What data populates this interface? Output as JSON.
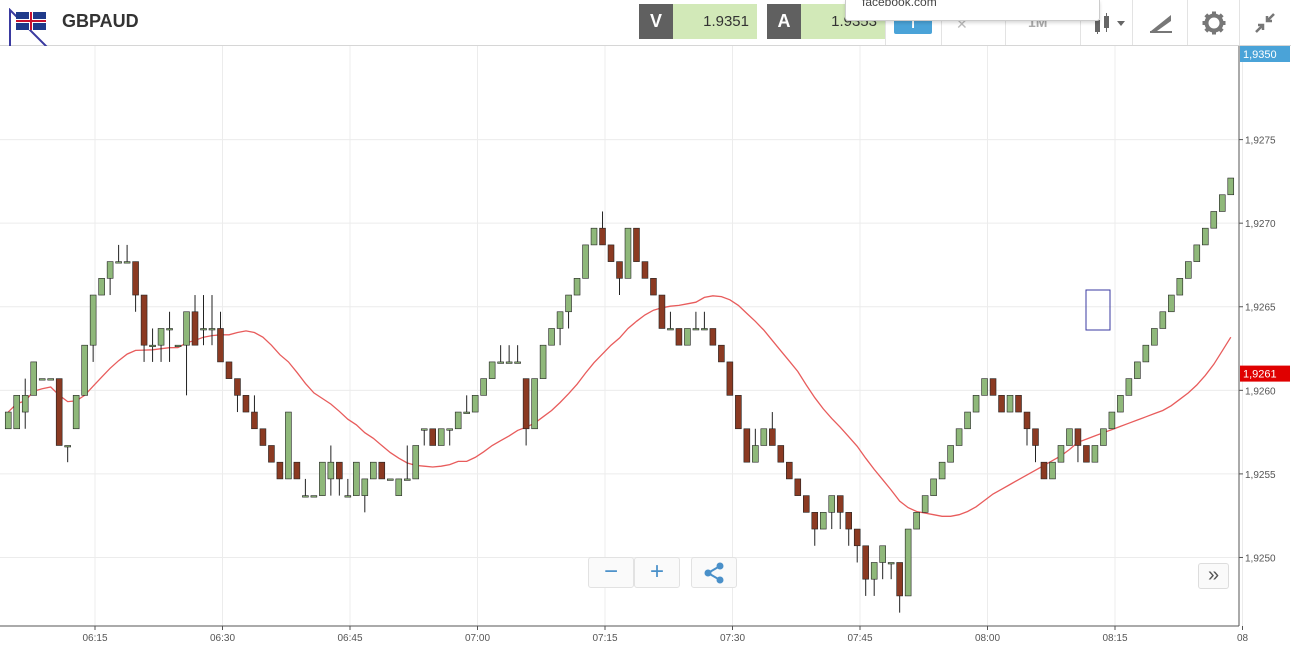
{
  "instrument": {
    "symbol": "GBPAUD",
    "flag_icon": "gb-au-flag-icon"
  },
  "quotes": {
    "sell_label": "V",
    "sell_value": "1.9351",
    "buy_label": "A",
    "buy_value": "1.9353"
  },
  "tooltip": {
    "text": "facebook.com"
  },
  "toolbar": {
    "indicator_label": "I",
    "timeframe_label": "1M",
    "tools_icons": [
      "chart-type-icon",
      "draw-tool-icon",
      "gear-icon",
      "collapse-icon"
    ]
  },
  "chart_data": {
    "type": "candlestick",
    "x_ticks": [
      "06:15",
      "06:30",
      "06:45",
      "07:00",
      "07:15",
      "07:30",
      "07:45",
      "08:00",
      "08:15",
      "08"
    ],
    "y_ticks": [
      "1,9275",
      "1,9270",
      "1,9265",
      "1,9260",
      "1,9255",
      "1,9250"
    ],
    "ylim": [
      1.92459,
      1.92806
    ],
    "current_price_label": "1,9350",
    "ma_price_label": "1,9261",
    "colors": {
      "up": "#8fb87a",
      "down": "#8b3a22",
      "ma": "#e85c5c",
      "current_badge": "#4aa3d8",
      "ma_badge": "#e00000",
      "grid": "#ececec"
    },
    "candles": [
      [
        1.92577,
        1.92587,
        1.92587,
        1.92577
      ],
      [
        1.92577,
        1.92597,
        1.92597,
        1.92577
      ],
      [
        1.92587,
        1.92597,
        1.92607,
        1.92577
      ],
      [
        1.92597,
        1.92617,
        1.92617,
        1.92597
      ],
      [
        1.92607,
        1.92607,
        1.92607,
        1.92607
      ],
      [
        1.92607,
        1.92607,
        1.92607,
        1.92607
      ],
      [
        1.92607,
        1.92567,
        1.92607,
        1.92567
      ],
      [
        1.92567,
        1.92567,
        1.92567,
        1.92557
      ],
      [
        1.92577,
        1.92597,
        1.92597,
        1.92577
      ],
      [
        1.92597,
        1.92627,
        1.92627,
        1.92597
      ],
      [
        1.92627,
        1.92657,
        1.92657,
        1.92617
      ],
      [
        1.92657,
        1.92667,
        1.92667,
        1.92657
      ],
      [
        1.92667,
        1.92677,
        1.92677,
        1.92657
      ],
      [
        1.92677,
        1.92677,
        1.92687,
        1.92677
      ],
      [
        1.92677,
        1.92677,
        1.92687,
        1.92677
      ],
      [
        1.92677,
        1.92657,
        1.92677,
        1.92647
      ],
      [
        1.92657,
        1.92627,
        1.92657,
        1.92617
      ],
      [
        1.92627,
        1.92627,
        1.92637,
        1.92617
      ],
      [
        1.92627,
        1.92637,
        1.92637,
        1.92617
      ],
      [
        1.92637,
        1.92637,
        1.92647,
        1.92617
      ],
      [
        1.92627,
        1.92627,
        1.92627,
        1.92627
      ],
      [
        1.92627,
        1.92647,
        1.92647,
        1.92597
      ],
      [
        1.92647,
        1.92627,
        1.92657,
        1.92627
      ],
      [
        1.92637,
        1.92637,
        1.92657,
        1.92627
      ],
      [
        1.92637,
        1.92637,
        1.92657,
        1.92627
      ],
      [
        1.92637,
        1.92617,
        1.92647,
        1.92617
      ],
      [
        1.92617,
        1.92607,
        1.92617,
        1.92607
      ],
      [
        1.92607,
        1.92597,
        1.92607,
        1.92587
      ],
      [
        1.92597,
        1.92587,
        1.92597,
        1.92587
      ],
      [
        1.92587,
        1.92577,
        1.92597,
        1.92577
      ],
      [
        1.92577,
        1.92567,
        1.92577,
        1.92567
      ],
      [
        1.92567,
        1.92557,
        1.92567,
        1.92557
      ],
      [
        1.92557,
        1.92547,
        1.92557,
        1.92547
      ],
      [
        1.92547,
        1.92587,
        1.92587,
        1.92547
      ],
      [
        1.92557,
        1.92547,
        1.92557,
        1.92547
      ],
      [
        1.92537,
        1.92537,
        1.92547,
        1.92537
      ],
      [
        1.92537,
        1.92537,
        1.92537,
        1.92537
      ],
      [
        1.92537,
        1.92557,
        1.92557,
        1.92537
      ],
      [
        1.92547,
        1.92557,
        1.92567,
        1.92537
      ],
      [
        1.92557,
        1.92547,
        1.92557,
        1.92537
      ],
      [
        1.92537,
        1.92537,
        1.92547,
        1.92537
      ],
      [
        1.92537,
        1.92557,
        1.92557,
        1.92537
      ],
      [
        1.92537,
        1.92547,
        1.92547,
        1.92527
      ],
      [
        1.92547,
        1.92557,
        1.92557,
        1.92547
      ],
      [
        1.92557,
        1.92547,
        1.92557,
        1.92547
      ],
      [
        1.92547,
        1.92547,
        1.92547,
        1.92547
      ],
      [
        1.92537,
        1.92547,
        1.92547,
        1.92537
      ],
      [
        1.92547,
        1.92547,
        1.92567,
        1.92547
      ],
      [
        1.92547,
        1.92567,
        1.92567,
        1.92547
      ],
      [
        1.92577,
        1.92577,
        1.92577,
        1.92567
      ],
      [
        1.92577,
        1.92567,
        1.92577,
        1.92567
      ],
      [
        1.92567,
        1.92577,
        1.92577,
        1.92567
      ],
      [
        1.92577,
        1.92577,
        1.92577,
        1.92567
      ],
      [
        1.92577,
        1.92587,
        1.92587,
        1.92577
      ],
      [
        1.92587,
        1.92587,
        1.92597,
        1.92587
      ],
      [
        1.92587,
        1.92597,
        1.92597,
        1.92587
      ],
      [
        1.92597,
        1.92607,
        1.92607,
        1.92597
      ],
      [
        1.92607,
        1.92617,
        1.92617,
        1.92607
      ],
      [
        1.92617,
        1.92617,
        1.92627,
        1.92617
      ],
      [
        1.92617,
        1.92617,
        1.92627,
        1.92617
      ],
      [
        1.92617,
        1.92617,
        1.92627,
        1.92617
      ],
      [
        1.92607,
        1.92577,
        1.92607,
        1.92567
      ],
      [
        1.92577,
        1.92607,
        1.92607,
        1.92577
      ],
      [
        1.92607,
        1.92627,
        1.92627,
        1.92607
      ],
      [
        1.92627,
        1.92637,
        1.92637,
        1.92627
      ],
      [
        1.92637,
        1.92647,
        1.92647,
        1.92627
      ],
      [
        1.92647,
        1.92657,
        1.92657,
        1.92637
      ],
      [
        1.92657,
        1.92667,
        1.92667,
        1.92657
      ],
      [
        1.92667,
        1.92687,
        1.92687,
        1.92667
      ],
      [
        1.92687,
        1.92697,
        1.92697,
        1.92687
      ],
      [
        1.92697,
        1.92687,
        1.92707,
        1.92687
      ],
      [
        1.92687,
        1.92677,
        1.92687,
        1.92677
      ],
      [
        1.92677,
        1.92667,
        1.92677,
        1.92657
      ],
      [
        1.92667,
        1.92697,
        1.92697,
        1.92667
      ],
      [
        1.92697,
        1.92677,
        1.92697,
        1.92677
      ],
      [
        1.92677,
        1.92667,
        1.92677,
        1.92667
      ],
      [
        1.92667,
        1.92657,
        1.92667,
        1.92657
      ],
      [
        1.92657,
        1.92637,
        1.92657,
        1.92637
      ],
      [
        1.92637,
        1.92637,
        1.92647,
        1.92637
      ],
      [
        1.92637,
        1.92627,
        1.92637,
        1.92627
      ],
      [
        1.92627,
        1.92637,
        1.92637,
        1.92627
      ],
      [
        1.92637,
        1.92637,
        1.92647,
        1.92637
      ],
      [
        1.92637,
        1.92637,
        1.92647,
        1.92637
      ],
      [
        1.92637,
        1.92627,
        1.92637,
        1.92627
      ],
      [
        1.92627,
        1.92617,
        1.92627,
        1.92617
      ],
      [
        1.92617,
        1.92597,
        1.92617,
        1.92597
      ],
      [
        1.92597,
        1.92577,
        1.92597,
        1.92577
      ],
      [
        1.92577,
        1.92557,
        1.92577,
        1.92557
      ],
      [
        1.92557,
        1.92567,
        1.92577,
        1.92557
      ],
      [
        1.92567,
        1.92577,
        1.92577,
        1.92567
      ],
      [
        1.92577,
        1.92567,
        1.92587,
        1.92567
      ],
      [
        1.92567,
        1.92557,
        1.92567,
        1.92557
      ],
      [
        1.92557,
        1.92547,
        1.92557,
        1.92547
      ],
      [
        1.92547,
        1.92537,
        1.92547,
        1.92537
      ],
      [
        1.92537,
        1.92527,
        1.92537,
        1.92527
      ],
      [
        1.92527,
        1.92517,
        1.92527,
        1.92507
      ],
      [
        1.92517,
        1.92527,
        1.92527,
        1.92517
      ],
      [
        1.92527,
        1.92537,
        1.92537,
        1.92517
      ],
      [
        1.92537,
        1.92527,
        1.92537,
        1.92517
      ],
      [
        1.92527,
        1.92517,
        1.92527,
        1.92507
      ],
      [
        1.92517,
        1.92507,
        1.92517,
        1.92497
      ],
      [
        1.92507,
        1.92487,
        1.92507,
        1.92477
      ],
      [
        1.92487,
        1.92497,
        1.92497,
        1.92477
      ],
      [
        1.92497,
        1.92507,
        1.92507,
        1.92487
      ],
      [
        1.92497,
        1.92497,
        1.92497,
        1.92487
      ],
      [
        1.92497,
        1.92477,
        1.92497,
        1.92467
      ],
      [
        1.92477,
        1.92517,
        1.92517,
        1.92477
      ],
      [
        1.92517,
        1.92527,
        1.92527,
        1.92517
      ],
      [
        1.92527,
        1.92537,
        1.92537,
        1.92527
      ],
      [
        1.92537,
        1.92547,
        1.92547,
        1.92537
      ],
      [
        1.92547,
        1.92557,
        1.92557,
        1.92547
      ],
      [
        1.92557,
        1.92567,
        1.92567,
        1.92557
      ],
      [
        1.92567,
        1.92577,
        1.92577,
        1.92567
      ],
      [
        1.92577,
        1.92587,
        1.92587,
        1.92577
      ],
      [
        1.92587,
        1.92597,
        1.92597,
        1.92587
      ],
      [
        1.92597,
        1.92607,
        1.92607,
        1.92597
      ],
      [
        1.92607,
        1.92597,
        1.92607,
        1.92597
      ],
      [
        1.92597,
        1.92587,
        1.92597,
        1.92587
      ],
      [
        1.92587,
        1.92597,
        1.92597,
        1.92587
      ],
      [
        1.92597,
        1.92587,
        1.92597,
        1.92587
      ],
      [
        1.92587,
        1.92577,
        1.92587,
        1.92567
      ],
      [
        1.92577,
        1.92567,
        1.92577,
        1.92557
      ],
      [
        1.92557,
        1.92547,
        1.92557,
        1.92547
      ],
      [
        1.92547,
        1.92557,
        1.92557,
        1.92547
      ],
      [
        1.92557,
        1.92567,
        1.92567,
        1.92557
      ],
      [
        1.92567,
        1.92577,
        1.92577,
        1.92567
      ],
      [
        1.92577,
        1.92567,
        1.92577,
        1.92557
      ],
      [
        1.92567,
        1.92557,
        1.92567,
        1.92557
      ],
      [
        1.92557,
        1.92567,
        1.92567,
        1.92557
      ],
      [
        1.92567,
        1.92577,
        1.92577,
        1.92567
      ],
      [
        1.92577,
        1.92587,
        1.92587,
        1.92577
      ],
      [
        1.92587,
        1.92597,
        1.92597,
        1.92587
      ],
      [
        1.92597,
        1.92607,
        1.92607,
        1.92597
      ],
      [
        1.92607,
        1.92617,
        1.92617,
        1.92607
      ],
      [
        1.92617,
        1.92627,
        1.92627,
        1.92617
      ],
      [
        1.92627,
        1.92637,
        1.92637,
        1.92627
      ],
      [
        1.92637,
        1.92647,
        1.92647,
        1.92637
      ],
      [
        1.92647,
        1.92657,
        1.92657,
        1.92647
      ],
      [
        1.92657,
        1.92667,
        1.92667,
        1.92657
      ],
      [
        1.92667,
        1.92677,
        1.92677,
        1.92667
      ],
      [
        1.92677,
        1.92687,
        1.92687,
        1.92677
      ],
      [
        1.92687,
        1.92697,
        1.92697,
        1.92687
      ],
      [
        1.92697,
        1.92707,
        1.92707,
        1.92697
      ],
      [
        1.92707,
        1.92717,
        1.92717,
        1.92707
      ],
      [
        1.92717,
        1.92727,
        1.92727,
        1.92717
      ]
    ]
  }
}
